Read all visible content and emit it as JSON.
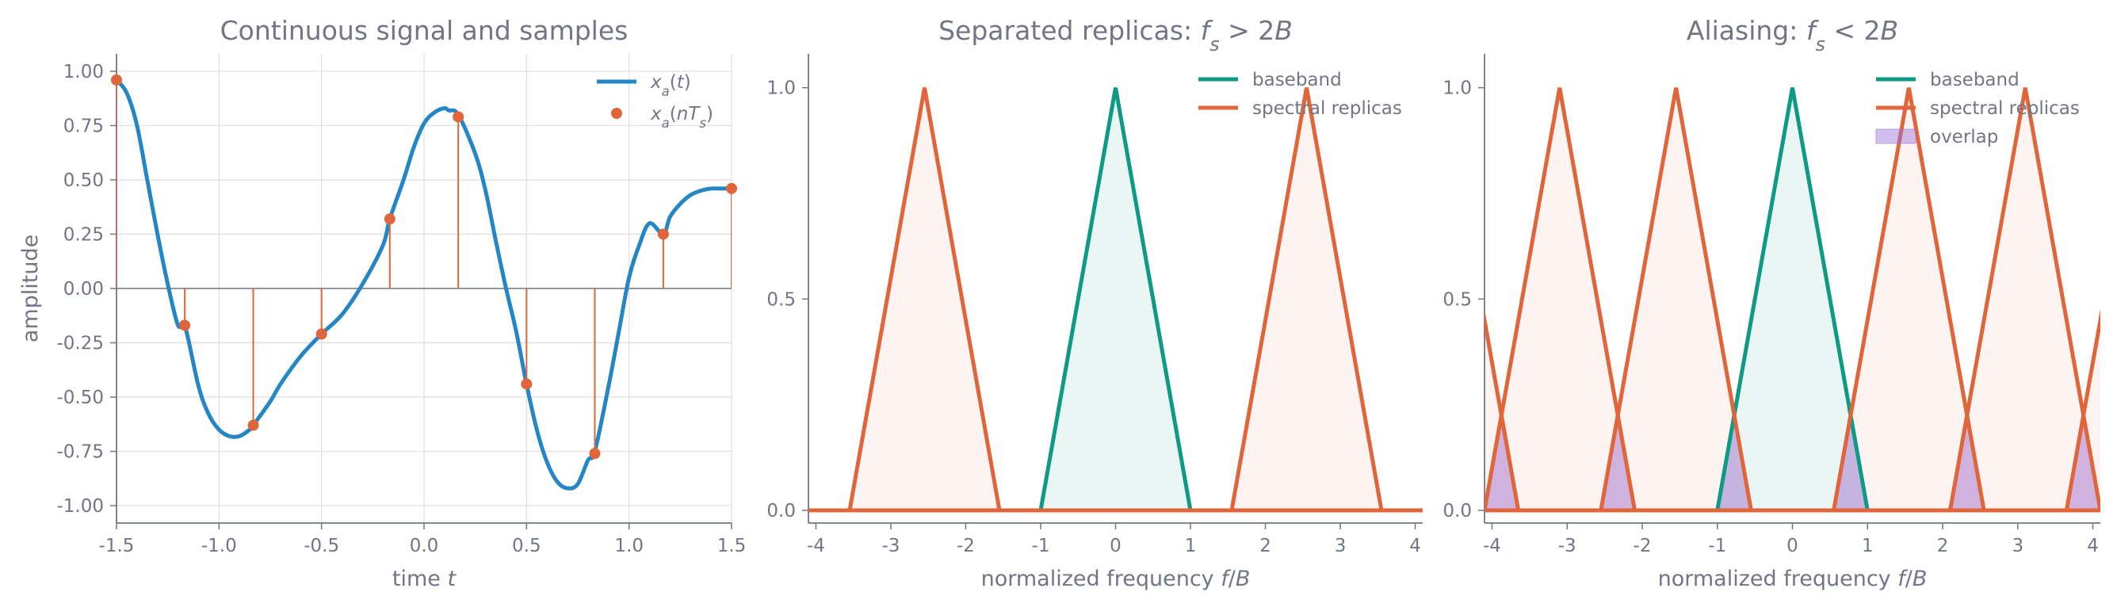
{
  "colors": {
    "signal": "#2586c6",
    "samples": "#e0653a",
    "baseband": "#0e9a84",
    "replica": "#e0653a",
    "overlap": "#9b6fd6",
    "grid": "#dedede",
    "axis": "#707685",
    "text": "#707685"
  },
  "chart_data": [
    {
      "type": "line",
      "title_parts": [
        {
          "text": "Continuous signal and samples",
          "italic": false
        }
      ],
      "xlabel_parts": [
        {
          "text": "time ",
          "italic": false
        },
        {
          "text": "t",
          "italic": true
        }
      ],
      "ylabel": "amplitude",
      "xlim": [
        -1.5,
        1.5
      ],
      "ylim": [
        -1.08,
        1.08
      ],
      "xticks": [
        -1.5,
        -1.0,
        -0.5,
        0.0,
        0.5,
        1.0,
        1.5
      ],
      "xtick_labels": [
        "-1.5",
        "-1.0",
        "-0.5",
        "0.0",
        "0.5",
        "1.0",
        "1.5"
      ],
      "yticks": [
        1.0,
        0.75,
        0.5,
        0.25,
        0.0,
        -0.25,
        -0.5,
        -0.75,
        -1.0
      ],
      "ytick_labels": [
        "1.00",
        "0.75",
        "0.50",
        "0.25",
        "0.00",
        "-0.25",
        "-0.50",
        "-0.75",
        "-1.00"
      ],
      "grid": true,
      "legend_position": "top-right",
      "series": [
        {
          "name": "x_a(t)",
          "name_parts": [
            {
              "text": "x",
              "italic": true
            },
            {
              "text": "a",
              "italic": true,
              "sub": true
            },
            {
              "text": "(",
              "italic": false
            },
            {
              "text": "t",
              "italic": true
            },
            {
              "text": ")",
              "italic": false
            }
          ],
          "type": "line",
          "x": [
            -1.5,
            -1.45,
            -1.4,
            -1.35,
            -1.3,
            -1.25,
            -1.2,
            -1.167,
            -1.1,
            -1.05,
            -1.0,
            -0.95,
            -0.9,
            -0.85,
            -0.833,
            -0.75,
            -0.7,
            -0.6,
            -0.5,
            -0.4,
            -0.3,
            -0.2,
            -0.167,
            -0.1,
            -0.05,
            0.0,
            0.05,
            0.1,
            0.12,
            0.167,
            0.25,
            0.3,
            0.35,
            0.4,
            0.45,
            0.5,
            0.55,
            0.6,
            0.65,
            0.7,
            0.75,
            0.8,
            0.833,
            0.9,
            0.95,
            1.0,
            1.05,
            1.1,
            1.167,
            1.2,
            1.25,
            1.3,
            1.35,
            1.4,
            1.45,
            1.5
          ],
          "y": [
            0.96,
            0.9,
            0.75,
            0.5,
            0.25,
            0.02,
            -0.17,
            -0.17,
            -0.45,
            -0.58,
            -0.65,
            -0.68,
            -0.68,
            -0.65,
            -0.63,
            -0.52,
            -0.44,
            -0.31,
            -0.21,
            -0.12,
            0.02,
            0.2,
            0.32,
            0.5,
            0.65,
            0.76,
            0.81,
            0.83,
            0.82,
            0.8,
            0.62,
            0.45,
            0.22,
            0.0,
            -0.2,
            -0.44,
            -0.65,
            -0.8,
            -0.89,
            -0.92,
            -0.9,
            -0.79,
            -0.75,
            -0.45,
            -0.2,
            0.05,
            0.2,
            0.3,
            0.25,
            0.33,
            0.39,
            0.43,
            0.45,
            0.46,
            0.46,
            0.46
          ]
        },
        {
          "name": "x_a(nT_s)",
          "name_parts": [
            {
              "text": "x",
              "italic": true
            },
            {
              "text": "a",
              "italic": true,
              "sub": true
            },
            {
              "text": "(",
              "italic": false
            },
            {
              "text": "nT",
              "italic": true
            },
            {
              "text": "s",
              "italic": true,
              "sub": true
            },
            {
              "text": ")",
              "italic": false
            }
          ],
          "type": "stem",
          "x": [
            -1.5,
            -1.167,
            -0.833,
            -0.5,
            -0.167,
            0.167,
            0.5,
            0.833,
            1.167,
            1.5
          ],
          "y": [
            0.96,
            -0.17,
            -0.63,
            -0.21,
            0.32,
            0.79,
            -0.44,
            -0.76,
            0.25,
            0.46
          ]
        }
      ]
    },
    {
      "type": "area",
      "title_parts": [
        {
          "text": "Separated replicas: ",
          "italic": false
        },
        {
          "text": "f",
          "italic": true
        },
        {
          "text": "s",
          "italic": true,
          "sub": true
        },
        {
          "text": " > 2",
          "italic": false
        },
        {
          "text": "B",
          "italic": true
        }
      ],
      "xlabel_parts": [
        {
          "text": "normalized frequency ",
          "italic": false
        },
        {
          "text": "f",
          "italic": true
        },
        {
          "text": "/",
          "italic": false
        },
        {
          "text": "B",
          "italic": true
        }
      ],
      "ylabel": "",
      "xlim": [
        -4.1,
        4.1
      ],
      "ylim": [
        -0.03,
        1.08
      ],
      "xticks": [
        -4,
        -3,
        -2,
        -1,
        0,
        1,
        2,
        3,
        4
      ],
      "xtick_labels": [
        "-4",
        "-3",
        "-2",
        "-1",
        "0",
        "1",
        "2",
        "3",
        "4"
      ],
      "yticks": [
        0.0,
        0.5,
        1.0
      ],
      "ytick_labels": [
        "0.0",
        "0.5",
        "1.0"
      ],
      "grid": false,
      "legend_position": "top-right",
      "sampling_rate_fs_over_B": 2.55,
      "series": [
        {
          "name": "baseband",
          "type": "triangle",
          "centers": [
            0
          ],
          "half_width": 1,
          "peak": 1.0
        },
        {
          "name": "spectral replicas",
          "type": "triangle",
          "centers": [
            -2.55,
            2.55
          ],
          "half_width": 1,
          "peak": 1.0
        }
      ]
    },
    {
      "type": "area",
      "title_parts": [
        {
          "text": "Aliasing: ",
          "italic": false
        },
        {
          "text": "f",
          "italic": true
        },
        {
          "text": "s",
          "italic": true,
          "sub": true
        },
        {
          "text": " < 2",
          "italic": false
        },
        {
          "text": "B",
          "italic": true
        }
      ],
      "xlabel_parts": [
        {
          "text": "normalized frequency ",
          "italic": false
        },
        {
          "text": "f",
          "italic": true
        },
        {
          "text": "/",
          "italic": false
        },
        {
          "text": "B",
          "italic": true
        }
      ],
      "ylabel": "",
      "xlim": [
        -4.1,
        4.1
      ],
      "ylim": [
        -0.03,
        1.08
      ],
      "xticks": [
        -4,
        -3,
        -2,
        -1,
        0,
        1,
        2,
        3,
        4
      ],
      "xtick_labels": [
        "-4",
        "-3",
        "-2",
        "-1",
        "0",
        "1",
        "2",
        "3",
        "4"
      ],
      "yticks": [
        0.0,
        0.5,
        1.0
      ],
      "ytick_labels": [
        "0.0",
        "0.5",
        "1.0"
      ],
      "grid": false,
      "legend_position": "top-right",
      "sampling_rate_fs_over_B": 1.55,
      "series": [
        {
          "name": "baseband",
          "type": "triangle",
          "centers": [
            0
          ],
          "half_width": 1,
          "peak": 1.0
        },
        {
          "name": "spectral replicas",
          "type": "triangle",
          "centers": [
            -4.65,
            -3.1,
            -1.55,
            1.55,
            3.1,
            4.65
          ],
          "half_width": 1,
          "peak": 1.0
        },
        {
          "name": "overlap",
          "type": "overlap_fill"
        }
      ]
    }
  ]
}
